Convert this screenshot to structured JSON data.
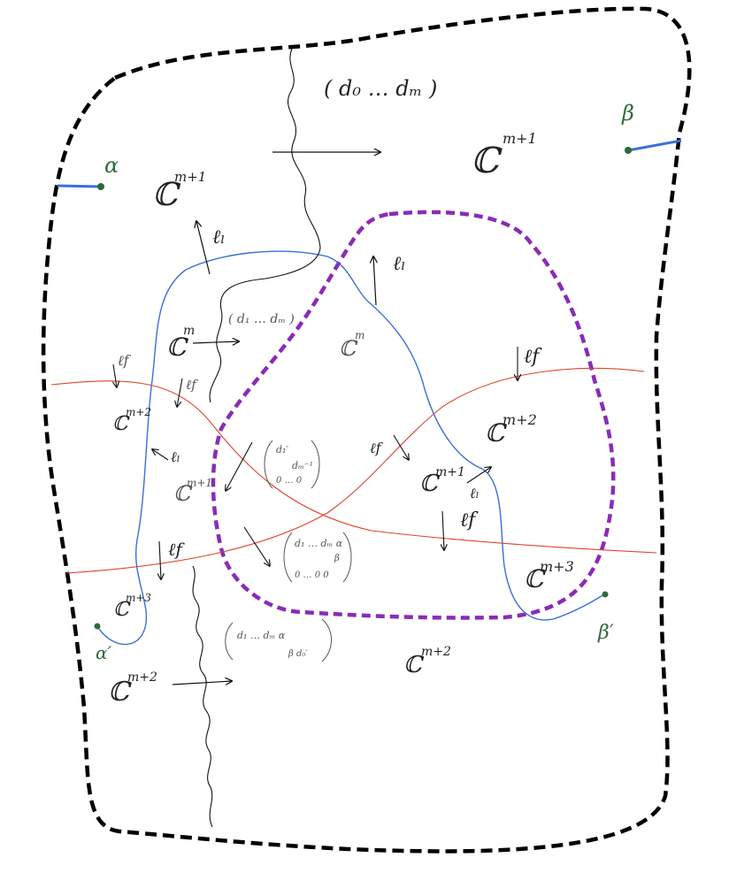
{
  "colors": {
    "outer_boundary": "#000000",
    "inner_region": "#8a2bb8",
    "blue_curve": "#3a6fd8",
    "red_curve": "#e0442c",
    "green_point": "#2e6b3a",
    "ink": "#222222"
  },
  "endpoints": {
    "alpha": "α",
    "beta": "β",
    "alpha_prime": "α′",
    "beta_prime": "β′"
  },
  "spaces": {
    "top_left": {
      "base": "ℂ",
      "exp": "m+1"
    },
    "top_right": {
      "base": "ℂ",
      "exp": "m+1"
    },
    "blue_left": {
      "base": "ℂ",
      "exp": "m"
    },
    "blue_inner": {
      "base": "ℂ",
      "exp": "m"
    },
    "left_mid": {
      "base": "ℂ",
      "exp": "m+2"
    },
    "center_left": {
      "base": "ℂ",
      "exp": "m+1"
    },
    "center_right": {
      "base": "ℂ",
      "exp": "m+1"
    },
    "right_mid": {
      "base": "ℂ",
      "exp": "m+2"
    },
    "right_low": {
      "base": "ℂ",
      "exp": "m+3"
    },
    "left_low": {
      "base": "ℂ",
      "exp": "m+3"
    },
    "bottom_left": {
      "base": "ℂ",
      "exp": "m+2"
    },
    "bottom_right": {
      "base": "ℂ",
      "exp": "m+2"
    }
  },
  "matrices": {
    "top": "( d₀ … dₘ )",
    "blue": "( d₁ … dₘ )",
    "center_row1": "d₁′",
    "center_row2": "dₘ⁻¹",
    "center_row3": "0 … 0",
    "lower_row1": "d₁ … dₘ  α",
    "lower_row2": "β",
    "lower_row3": "0 … 0  0",
    "bottom_row1": "d₁ … dₘ  α",
    "bottom_row2": "β   d₀′"
  },
  "line_labels": {
    "l_l": "ℓₗ",
    "l_f": "ℓf"
  }
}
